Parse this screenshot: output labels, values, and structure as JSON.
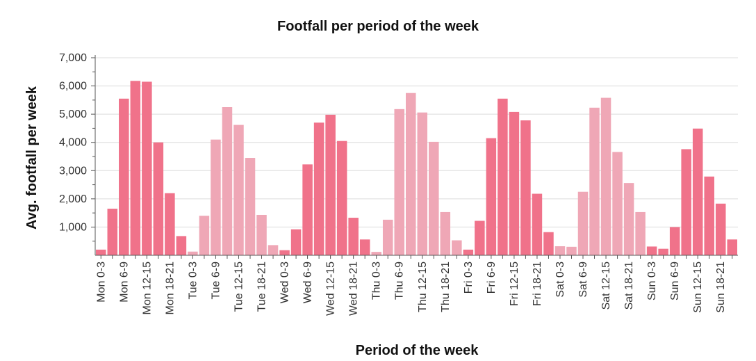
{
  "chart_data": {
    "type": "bar",
    "title": "Footfall per period of the week",
    "xlabel": "Period of the week",
    "ylabel": "Avg. footfall per week",
    "ylim": [
      0,
      7000
    ],
    "yticks": [
      1000,
      2000,
      3000,
      4000,
      5000,
      6000,
      7000
    ],
    "ytick_labels": [
      "1,000",
      "2,000",
      "3,000",
      "4,000",
      "5,000",
      "6,000",
      "7,000"
    ],
    "colors": {
      "dark": "#f0728a",
      "light": "#efa7b6"
    },
    "categories": [
      "Mon 0-3",
      "Mon 3-6",
      "Mon 6-9",
      "Mon 9-12",
      "Mon 12-15",
      "Mon 15-18",
      "Mon 18-21",
      "Mon 21-24",
      "Tue 0-3",
      "Tue 3-6",
      "Tue 6-9",
      "Tue 9-12",
      "Tue 12-15",
      "Tue 15-18",
      "Tue 18-21",
      "Tue 21-24",
      "Wed 0-3",
      "Wed 3-6",
      "Wed 6-9",
      "Wed 9-12",
      "Wed 12-15",
      "Wed 15-18",
      "Wed 18-21",
      "Wed 21-24",
      "Thu 0-3",
      "Thu 3-6",
      "Thu 6-9",
      "Thu 9-12",
      "Thu 12-15",
      "Thu 15-18",
      "Thu 18-21",
      "Thu 21-24",
      "Fri 0-3",
      "Fri 3-6",
      "Fri 6-9",
      "Fri 9-12",
      "Fri 12-15",
      "Fri 15-18",
      "Fri 18-21",
      "Fri 21-24",
      "Sat 0-3",
      "Sat 3-6",
      "Sat 6-9",
      "Sat 9-12",
      "Sat 12-15",
      "Sat 15-18",
      "Sat 18-21",
      "Sat 21-24",
      "Sun 0-3",
      "Sun 3-6",
      "Sun 6-9",
      "Sun 9-12",
      "Sun 12-15",
      "Sun 15-18",
      "Sun 18-21",
      "Sun 21-24"
    ],
    "values": [
      200,
      1650,
      5550,
      6180,
      6150,
      4000,
      2200,
      680,
      130,
      1400,
      4100,
      5250,
      4620,
      3450,
      1430,
      360,
      180,
      920,
      3220,
      4700,
      4980,
      4050,
      1330,
      560,
      120,
      1260,
      5180,
      5750,
      5060,
      4020,
      1530,
      530,
      200,
      1220,
      4150,
      5550,
      5080,
      4780,
      2180,
      820,
      320,
      300,
      2250,
      5230,
      5580,
      3660,
      2560,
      1530,
      310,
      230,
      1000,
      3760,
      4490,
      2790,
      1830,
      560
    ],
    "shades": [
      "dark",
      "dark",
      "dark",
      "dark",
      "dark",
      "dark",
      "dark",
      "dark",
      "light",
      "light",
      "light",
      "light",
      "light",
      "light",
      "light",
      "light",
      "dark",
      "dark",
      "dark",
      "dark",
      "dark",
      "dark",
      "dark",
      "dark",
      "light",
      "light",
      "light",
      "light",
      "light",
      "light",
      "light",
      "light",
      "dark",
      "dark",
      "dark",
      "dark",
      "dark",
      "dark",
      "dark",
      "dark",
      "light",
      "light",
      "light",
      "light",
      "light",
      "light",
      "light",
      "light",
      "dark",
      "dark",
      "dark",
      "dark",
      "dark",
      "dark",
      "dark",
      "dark"
    ],
    "xtick_labels": [
      "Mon 0-3",
      "Mon 6-9",
      "Mon 12-15",
      "Mon 18-21",
      "Tue 0-3",
      "Tue 6-9",
      "Tue 12-15",
      "Tue 18-21",
      "Wed 0-3",
      "Wed 6-9",
      "Wed 12-15",
      "Wed 18-21",
      "Thu 0-3",
      "Thu 6-9",
      "Thu 12-15",
      "Thu 18-21",
      "Fri 0-3",
      "Fri 6-9",
      "Fri 12-15",
      "Fri 18-21",
      "Sat 0-3",
      "Sat 6-9",
      "Sat 12-15",
      "Sat 18-21",
      "Sun 0-3",
      "Sun 6-9",
      "Sun 12-15",
      "Sun 18-21"
    ],
    "grid": true,
    "legend": "none"
  }
}
